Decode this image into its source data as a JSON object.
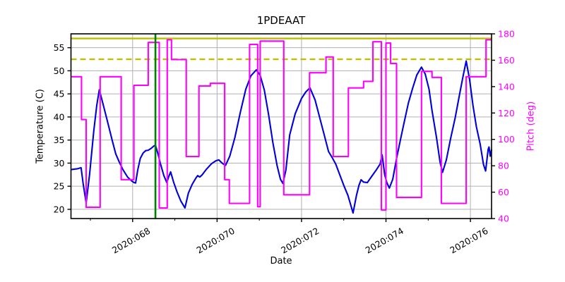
{
  "chart_data": {
    "type": "line",
    "title": "1PDEAAT",
    "xlabel": "Date",
    "ylabel_left": "Temperature (C)",
    "ylabel_right": "Pitch (deg)",
    "grid": true,
    "legend": false,
    "colors": {
      "temperature": "#0000dd",
      "pitch": "#ff00ff",
      "limit": "#bfbf00",
      "time_marker": "#008000",
      "grid": "#b0b0b0",
      "spine": "#000000"
    },
    "x_axis": {
      "min": 66.54,
      "max": 76.5,
      "major_ticks": [
        68,
        70,
        72,
        74,
        76
      ],
      "major_tick_labels": [
        "2020:068",
        "2020:070",
        "2020:072",
        "2020:074",
        "2020:076"
      ],
      "minor_ticks": [
        67,
        69,
        71,
        73,
        75
      ]
    },
    "y_left": {
      "min": 18,
      "max": 58,
      "ticks": [
        20,
        25,
        30,
        35,
        40,
        45,
        50,
        55
      ]
    },
    "y_right": {
      "min": 40,
      "max": 180,
      "ticks": [
        40,
        60,
        80,
        100,
        120,
        140,
        160,
        180
      ]
    },
    "reference_lines": [
      {
        "name": "yellow-caution-limit",
        "orientation": "horizontal",
        "axis": "left",
        "value": 57.0,
        "style": "solid",
        "color": "#bfbf00",
        "width": 2.4
      },
      {
        "name": "planning-limit",
        "orientation": "horizontal",
        "axis": "left",
        "value": 52.5,
        "style": "dashed",
        "color": "#bfbf00",
        "width": 2.4
      },
      {
        "name": "current-time-marker",
        "orientation": "vertical",
        "x": 68.54,
        "style": "solid",
        "color": "#008000",
        "width": 2.6
      }
    ],
    "series": [
      {
        "name": "temperature",
        "axis": "left",
        "color": "#0000dd",
        "width": 2.1,
        "draw": "line",
        "points": [
          [
            66.54,
            28.6
          ],
          [
            66.7,
            28.8
          ],
          [
            66.78,
            29.0
          ],
          [
            66.83,
            25.5
          ],
          [
            66.9,
            21.4
          ],
          [
            66.98,
            27.5
          ],
          [
            67.08,
            37.0
          ],
          [
            67.15,
            42.5
          ],
          [
            67.21,
            45.9
          ],
          [
            67.3,
            42.8
          ],
          [
            67.4,
            39.2
          ],
          [
            67.52,
            34.8
          ],
          [
            67.6,
            32.0
          ],
          [
            67.68,
            30.3
          ],
          [
            67.77,
            28.6
          ],
          [
            67.88,
            27.0
          ],
          [
            67.97,
            26.2
          ],
          [
            68.03,
            25.8
          ],
          [
            68.07,
            25.7
          ],
          [
            68.12,
            28.5
          ],
          [
            68.18,
            31.0
          ],
          [
            68.25,
            32.2
          ],
          [
            68.31,
            32.7
          ],
          [
            68.37,
            32.8
          ],
          [
            68.44,
            33.2
          ],
          [
            68.5,
            33.7
          ],
          [
            68.54,
            33.9
          ],
          [
            68.6,
            32.0
          ],
          [
            68.66,
            29.8
          ],
          [
            68.74,
            27.3
          ],
          [
            68.81,
            25.8
          ],
          [
            68.86,
            27.2
          ],
          [
            68.9,
            28.1
          ],
          [
            68.97,
            25.9
          ],
          [
            69.05,
            23.8
          ],
          [
            69.14,
            21.8
          ],
          [
            69.24,
            20.3
          ],
          [
            69.32,
            23.5
          ],
          [
            69.41,
            25.4
          ],
          [
            69.5,
            26.8
          ],
          [
            69.54,
            27.3
          ],
          [
            69.59,
            27.0
          ],
          [
            69.65,
            27.5
          ],
          [
            69.75,
            28.7
          ],
          [
            69.87,
            29.9
          ],
          [
            69.97,
            30.5
          ],
          [
            70.04,
            30.7
          ],
          [
            70.12,
            30.0
          ],
          [
            70.2,
            29.5
          ],
          [
            70.3,
            31.5
          ],
          [
            70.42,
            35.5
          ],
          [
            70.55,
            41.0
          ],
          [
            70.68,
            46.0
          ],
          [
            70.8,
            48.9
          ],
          [
            70.93,
            50.2
          ],
          [
            71.02,
            49.0
          ],
          [
            71.12,
            45.8
          ],
          [
            71.22,
            40.5
          ],
          [
            71.32,
            34.5
          ],
          [
            71.42,
            29.5
          ],
          [
            71.5,
            26.5
          ],
          [
            71.56,
            25.6
          ],
          [
            71.63,
            28.5
          ],
          [
            71.72,
            36.1
          ],
          [
            71.85,
            40.7
          ],
          [
            72.0,
            44.0
          ],
          [
            72.1,
            45.4
          ],
          [
            72.2,
            46.3
          ],
          [
            72.32,
            43.7
          ],
          [
            72.42,
            40.2
          ],
          [
            72.53,
            36.4
          ],
          [
            72.64,
            32.5
          ],
          [
            72.72,
            31.3
          ],
          [
            72.81,
            29.8
          ],
          [
            72.9,
            27.6
          ],
          [
            73.0,
            25.2
          ],
          [
            73.1,
            23.0
          ],
          [
            73.22,
            19.2
          ],
          [
            73.3,
            23.0
          ],
          [
            73.36,
            25.2
          ],
          [
            73.41,
            26.4
          ],
          [
            73.47,
            25.9
          ],
          [
            73.56,
            25.8
          ],
          [
            73.65,
            27.0
          ],
          [
            73.76,
            28.4
          ],
          [
            73.86,
            29.8
          ],
          [
            73.91,
            31.8
          ],
          [
            73.97,
            27.5
          ],
          [
            74.02,
            25.8
          ],
          [
            74.08,
            24.6
          ],
          [
            74.16,
            26.5
          ],
          [
            74.25,
            31.0
          ],
          [
            74.34,
            35.0
          ],
          [
            74.43,
            38.8
          ],
          [
            74.53,
            43.0
          ],
          [
            74.63,
            46.2
          ],
          [
            74.73,
            49.1
          ],
          [
            74.84,
            50.8
          ],
          [
            74.93,
            49.3
          ],
          [
            75.02,
            46.0
          ],
          [
            75.09,
            41.4
          ],
          [
            75.2,
            35.3
          ],
          [
            75.28,
            30.2
          ],
          [
            75.34,
            28.0
          ],
          [
            75.43,
            30.7
          ],
          [
            75.53,
            35.3
          ],
          [
            75.64,
            39.9
          ],
          [
            75.74,
            44.8
          ],
          [
            75.83,
            49.0
          ],
          [
            75.9,
            52.1
          ],
          [
            75.98,
            48.1
          ],
          [
            76.06,
            42.5
          ],
          [
            76.14,
            37.9
          ],
          [
            76.23,
            34.1
          ],
          [
            76.31,
            29.7
          ],
          [
            76.36,
            28.3
          ],
          [
            76.42,
            33.0
          ],
          [
            76.44,
            33.5
          ],
          [
            76.47,
            31.5
          ],
          [
            76.5,
            33.0
          ]
        ]
      },
      {
        "name": "pitch",
        "axis": "right",
        "color": "#ff00ff",
        "width": 2.1,
        "draw": "step-post",
        "end_x": 76.5,
        "points": [
          [
            66.54,
            147.5
          ],
          [
            66.79,
            115.0
          ],
          [
            66.9,
            48.5
          ],
          [
            67.23,
            147.5
          ],
          [
            67.73,
            69.5
          ],
          [
            68.03,
            141.0
          ],
          [
            68.37,
            173.5
          ],
          [
            68.63,
            48.0
          ],
          [
            68.82,
            175.5
          ],
          [
            68.92,
            160.5
          ],
          [
            69.27,
            87.0
          ],
          [
            69.57,
            140.5
          ],
          [
            69.84,
            142.5
          ],
          [
            70.18,
            69.5
          ],
          [
            70.29,
            51.5
          ],
          [
            70.77,
            172.0
          ],
          [
            70.96,
            49.0
          ],
          [
            71.02,
            174.5
          ],
          [
            71.58,
            58.0
          ],
          [
            72.19,
            150.5
          ],
          [
            72.58,
            162.5
          ],
          [
            72.75,
            87.0
          ],
          [
            73.11,
            139.0
          ],
          [
            73.47,
            144.0
          ],
          [
            73.69,
            174.0
          ],
          [
            73.89,
            46.5
          ],
          [
            74.0,
            173.0
          ],
          [
            74.11,
            157.5
          ],
          [
            74.25,
            56.0
          ],
          [
            74.84,
            151.5
          ],
          [
            75.09,
            147.0
          ],
          [
            75.31,
            51.5
          ],
          [
            75.9,
            147.5
          ],
          [
            76.37,
            175.5
          ]
        ]
      }
    ]
  }
}
